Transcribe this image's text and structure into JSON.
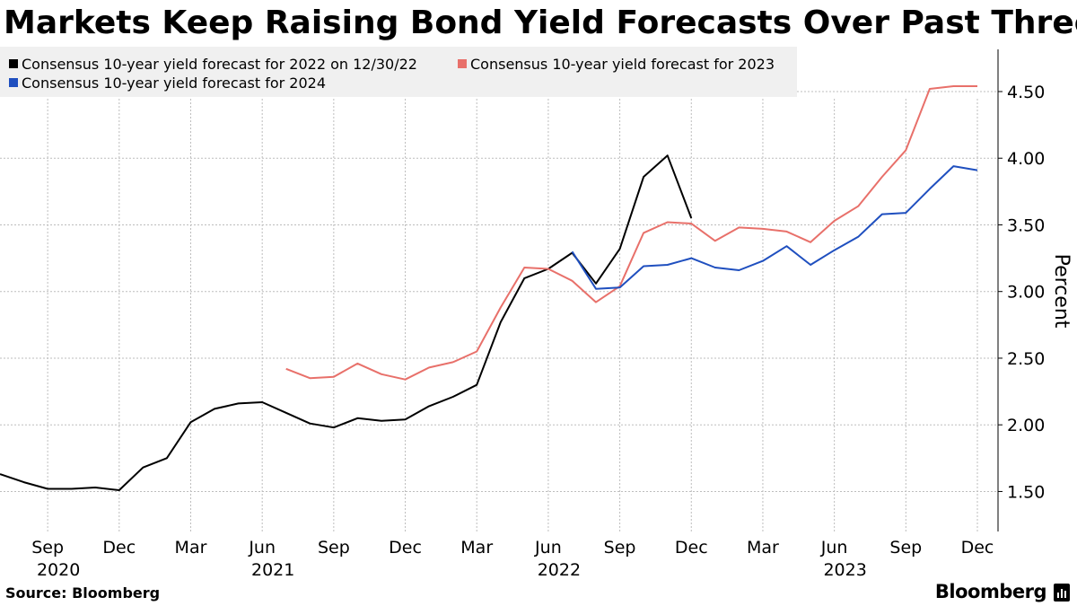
{
  "chart_data": {
    "type": "line",
    "title": "Markets Keep Raising Bond Yield Forecasts Over Past Three Years",
    "ylabel": "Percent",
    "xlabel": "",
    "ylim": [
      1.2,
      4.85
    ],
    "y_ticks": [
      1.5,
      2.0,
      2.5,
      3.0,
      3.5,
      4.0,
      4.5
    ],
    "y_tick_labels": [
      "1.50",
      "2.00",
      "2.50",
      "3.00",
      "3.50",
      "4.00",
      "4.50"
    ],
    "x_domain": [
      "2020-07",
      "2023-12"
    ],
    "x_ticks": [
      {
        "month": "2020-09",
        "label": "Sep",
        "year": "2020"
      },
      {
        "month": "2020-12",
        "label": "Dec",
        "year": ""
      },
      {
        "month": "2021-03",
        "label": "Mar",
        "year": ""
      },
      {
        "month": "2021-06",
        "label": "Jun",
        "year": "2021"
      },
      {
        "month": "2021-09",
        "label": "Sep",
        "year": ""
      },
      {
        "month": "2021-12",
        "label": "Dec",
        "year": ""
      },
      {
        "month": "2022-03",
        "label": "Mar",
        "year": ""
      },
      {
        "month": "2022-06",
        "label": "Jun",
        "year": "2022"
      },
      {
        "month": "2022-09",
        "label": "Sep",
        "year": ""
      },
      {
        "month": "2022-12",
        "label": "Dec",
        "year": ""
      },
      {
        "month": "2023-03",
        "label": "Mar",
        "year": ""
      },
      {
        "month": "2023-06",
        "label": "Jun",
        "year": "2023"
      },
      {
        "month": "2023-09",
        "label": "Sep",
        "year": ""
      },
      {
        "month": "2023-12",
        "label": "Dec",
        "year": ""
      }
    ],
    "grid": true,
    "legend_position": "top-left",
    "series": [
      {
        "name": "Consensus 10-year yield forecast for 2022 on 12/30/22",
        "color": "#000000",
        "x": [
          "2020-07",
          "2020-08",
          "2020-09",
          "2020-10",
          "2020-11",
          "2020-12",
          "2021-01",
          "2021-02",
          "2021-03",
          "2021-04",
          "2021-05",
          "2021-06",
          "2021-07",
          "2021-08",
          "2021-09",
          "2021-10",
          "2021-11",
          "2021-12",
          "2022-01",
          "2022-02",
          "2022-03",
          "2022-04",
          "2022-05",
          "2022-06",
          "2022-07",
          "2022-08",
          "2022-09",
          "2022-10",
          "2022-11",
          "2022-12"
        ],
        "values": [
          1.63,
          1.57,
          1.52,
          1.52,
          1.53,
          1.51,
          1.68,
          1.75,
          2.02,
          2.12,
          2.16,
          2.17,
          2.09,
          2.01,
          1.98,
          2.05,
          2.03,
          2.04,
          2.14,
          2.21,
          2.3,
          2.77,
          3.1,
          3.17,
          3.29,
          3.06,
          3.32,
          3.86,
          4.02,
          3.55
        ]
      },
      {
        "name": "Consensus 10-year yield forecast for 2023",
        "color": "#e8706a",
        "x": [
          "2021-07",
          "2021-08",
          "2021-09",
          "2021-10",
          "2021-11",
          "2021-12",
          "2022-01",
          "2022-02",
          "2022-03",
          "2022-04",
          "2022-05",
          "2022-06",
          "2022-07",
          "2022-08",
          "2022-09",
          "2022-10",
          "2022-11",
          "2022-12",
          "2023-01",
          "2023-02",
          "2023-03",
          "2023-04",
          "2023-05",
          "2023-06",
          "2023-07",
          "2023-08",
          "2023-09",
          "2023-10",
          "2023-11",
          "2023-12"
        ],
        "values": [
          2.42,
          2.35,
          2.36,
          2.46,
          2.38,
          2.34,
          2.43,
          2.47,
          2.55,
          2.88,
          3.18,
          3.17,
          3.08,
          2.92,
          3.04,
          3.44,
          3.52,
          3.51,
          3.38,
          3.48,
          3.47,
          3.45,
          3.37,
          3.53,
          3.64,
          3.86,
          4.06,
          4.52,
          4.54,
          4.54
        ]
      },
      {
        "name": "Consensus 10-year yield forecast for 2024",
        "color": "#1f4fbf",
        "x": [
          "2022-07",
          "2022-08",
          "2022-09",
          "2022-10",
          "2022-11",
          "2022-12",
          "2023-01",
          "2023-02",
          "2023-03",
          "2023-04",
          "2023-05",
          "2023-06",
          "2023-07",
          "2023-08",
          "2023-09",
          "2023-10",
          "2023-11",
          "2023-12"
        ],
        "values": [
          3.3,
          3.02,
          3.03,
          3.19,
          3.2,
          3.25,
          3.18,
          3.16,
          3.23,
          3.34,
          3.2,
          3.31,
          3.41,
          3.58,
          3.59,
          3.77,
          3.94,
          3.91
        ]
      }
    ]
  },
  "legend": {
    "items": [
      {
        "label": "Consensus 10-year yield forecast for 2022 on 12/30/22",
        "color": "#000000"
      },
      {
        "label": "Consensus 10-year yield forecast for 2023",
        "color": "#e8706a"
      },
      {
        "label": "Consensus 10-year yield forecast for 2024",
        "color": "#1f4fbf"
      }
    ]
  },
  "footer": {
    "source": "Source: Bloomberg",
    "brand": "Bloomberg"
  }
}
